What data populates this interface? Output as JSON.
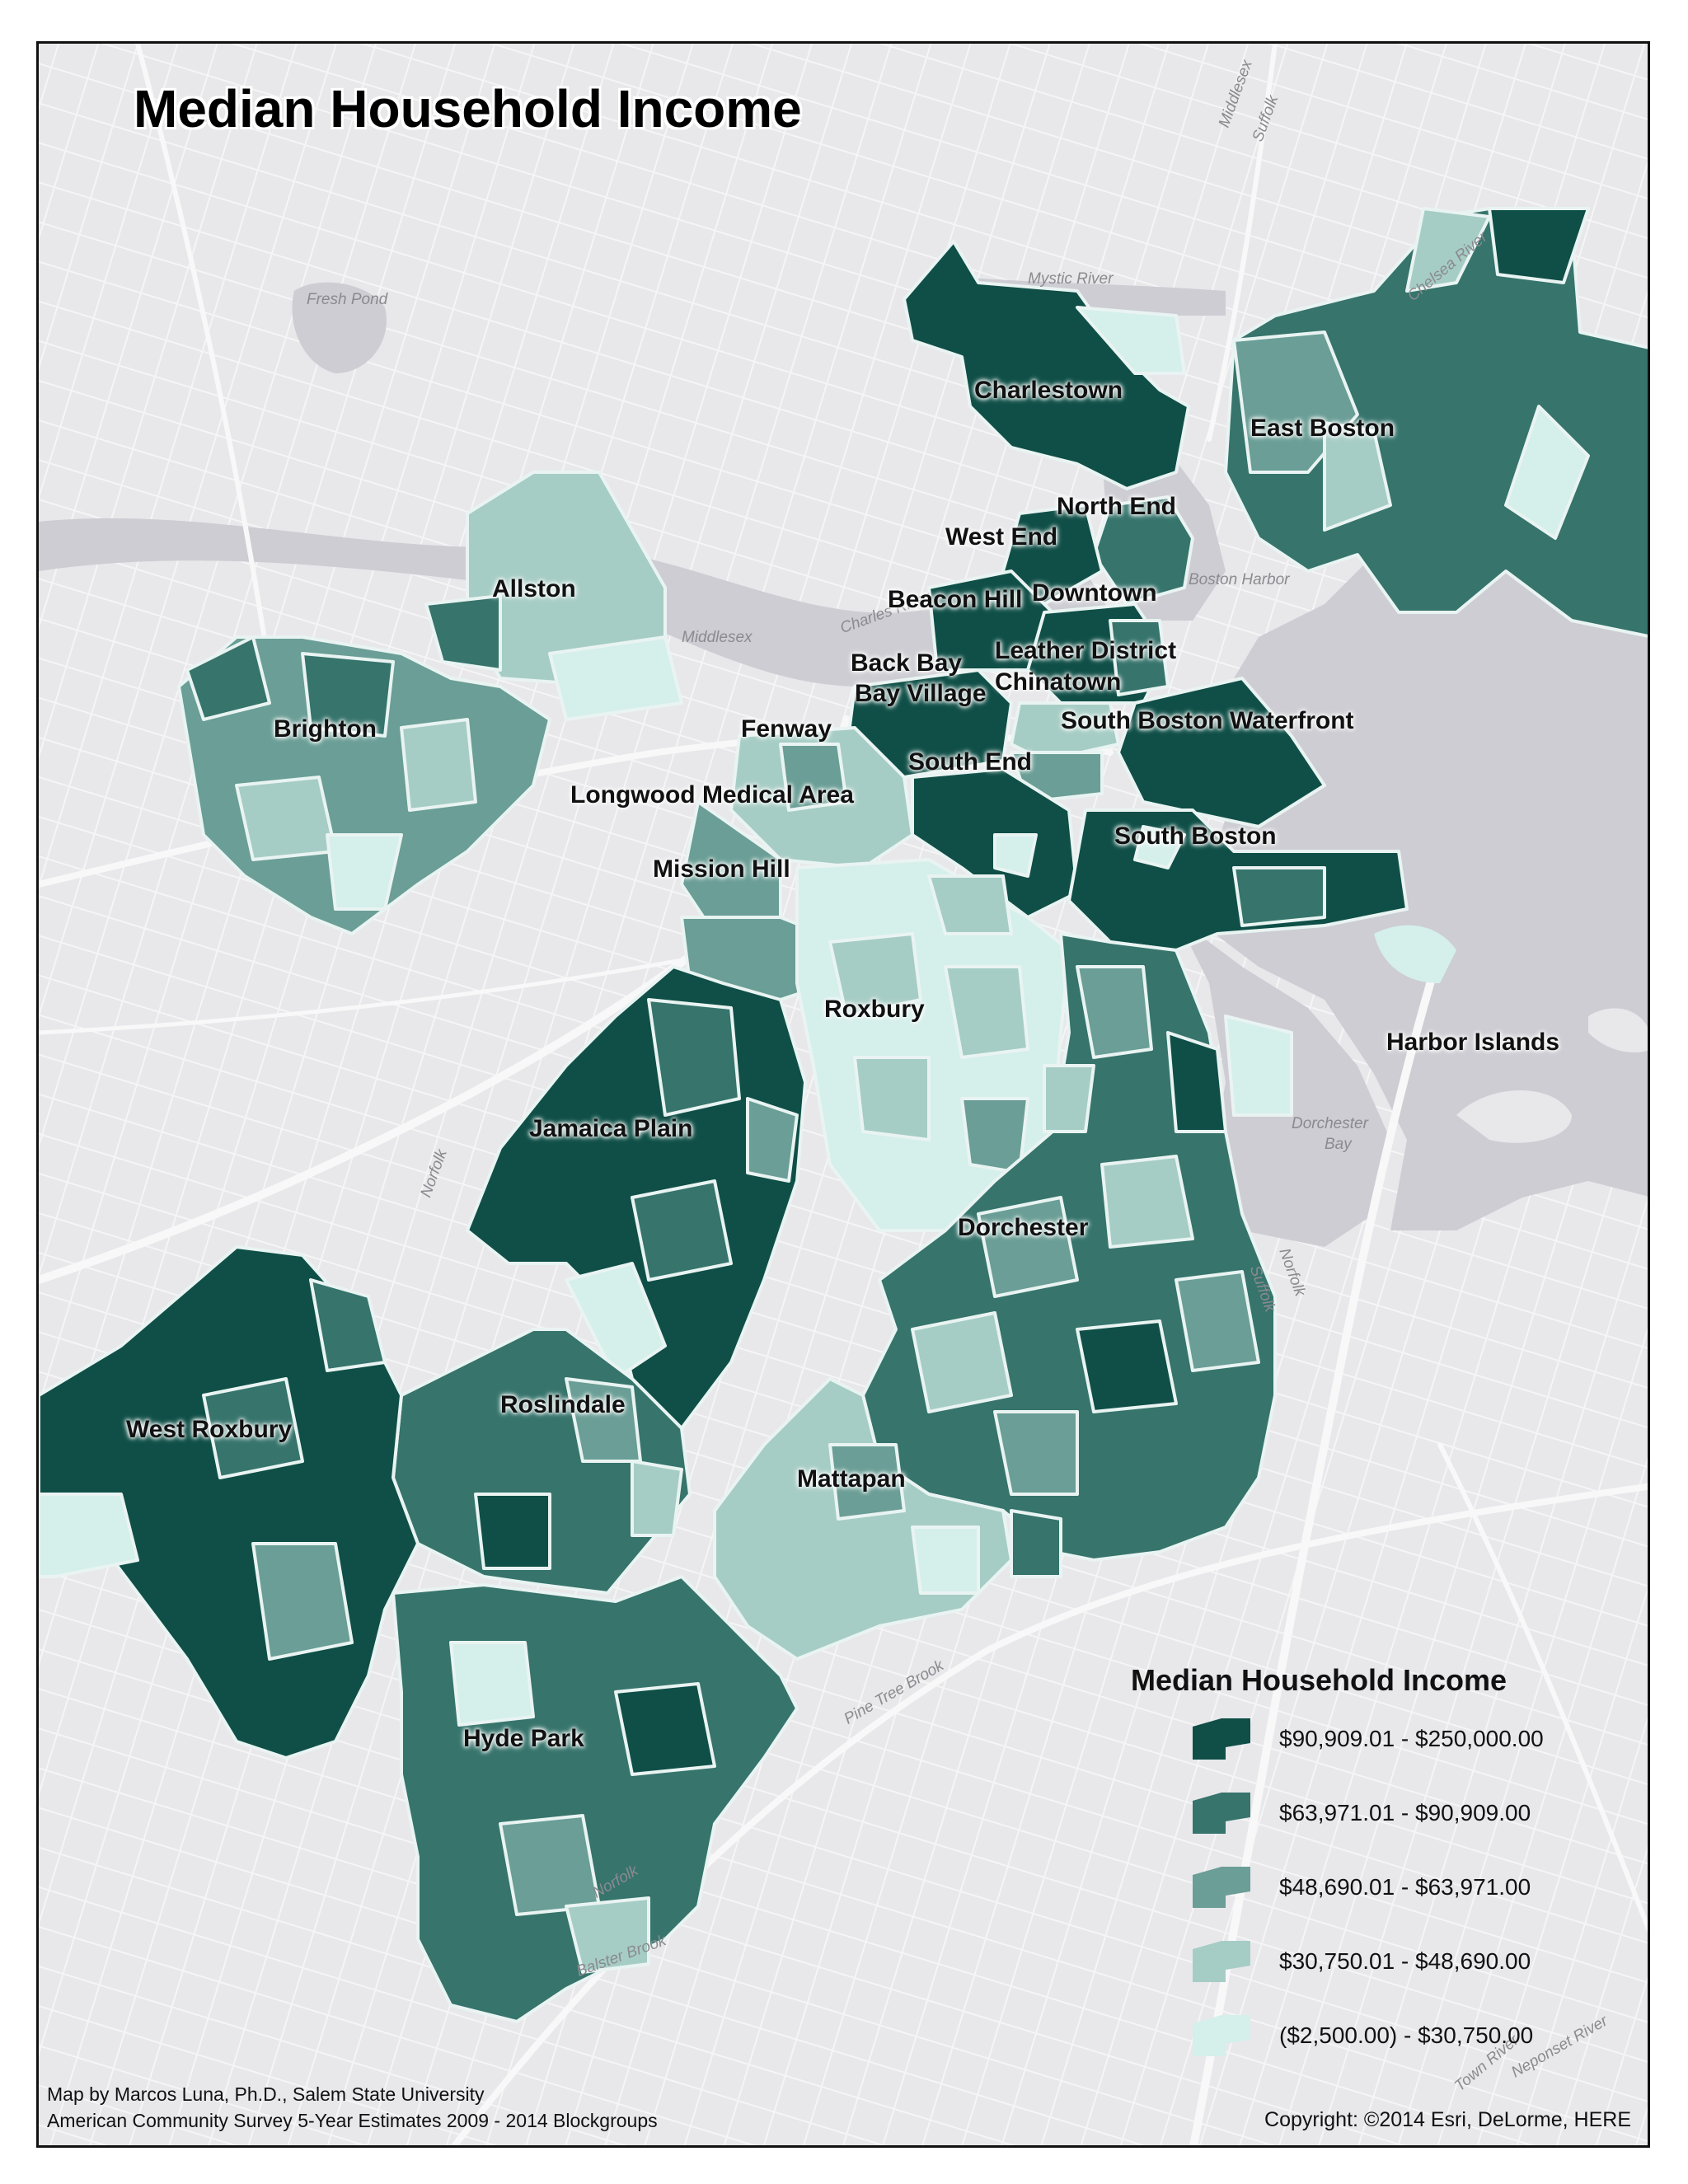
{
  "title": "Median Household Income",
  "neighborhoods": [
    {
      "name": "Charlestown"
    },
    {
      "name": "East Boston"
    },
    {
      "name": "North End"
    },
    {
      "name": "West End"
    },
    {
      "name": "Beacon Hill"
    },
    {
      "name": "Downtown"
    },
    {
      "name": "Leather District"
    },
    {
      "name": "Chinatown"
    },
    {
      "name": "Back Bay"
    },
    {
      "name": "Bay Village"
    },
    {
      "name": "South Boston Waterfront"
    },
    {
      "name": "Allston"
    },
    {
      "name": "Brighton"
    },
    {
      "name": "Fenway"
    },
    {
      "name": "South End"
    },
    {
      "name": "Longwood Medical Area"
    },
    {
      "name": "South Boston"
    },
    {
      "name": "Mission Hill"
    },
    {
      "name": "Roxbury"
    },
    {
      "name": "Harbor Islands"
    },
    {
      "name": "Jamaica Plain"
    },
    {
      "name": "Dorchester"
    },
    {
      "name": "Roslindale"
    },
    {
      "name": "West Roxbury"
    },
    {
      "name": "Mattapan"
    },
    {
      "name": "Hyde Park"
    }
  ],
  "geo_labels": [
    "Fresh Pond",
    "Mystic River",
    "Middlesex",
    "Suffolk",
    "Chelsea River",
    "Charles River",
    "Boston Harbor",
    "Middlesex",
    "Norfolk",
    "Dorchester",
    "Bay",
    "Norfolk",
    "Suffolk",
    "Pine Tree Brook",
    "Norfolk",
    "Balster Brook",
    "Town River",
    "Neponset River"
  ],
  "legend": {
    "title": "Median Household Income",
    "classes": [
      {
        "label": "$90,909.01 - $250,000.00",
        "color": "#0f4f47"
      },
      {
        "label": "$63,971.01 - $90,909.00",
        "color": "#36746c"
      },
      {
        "label": "$48,690.01 - $63,971.00",
        "color": "#6a9e96"
      },
      {
        "label": "$30,750.01 - $48,690.00",
        "color": "#a6cdc5"
      },
      {
        "label": "($2,500.00) - $30,750.00",
        "color": "#d5efeb"
      }
    ]
  },
  "credits": {
    "line1": "Map by Marcos Luna, Ph.D., Salem State University",
    "line2": "American Community Survey 5-Year Estimates 2009 - 2014 Blockgroups",
    "copyright": "Copyright: ©2014 Esri, DeLorme, HERE"
  },
  "colors": {
    "land": "#e9e9ec",
    "water": "#cdcdd2",
    "road": "#f7f7f8",
    "outline": "#e9f4f2"
  }
}
